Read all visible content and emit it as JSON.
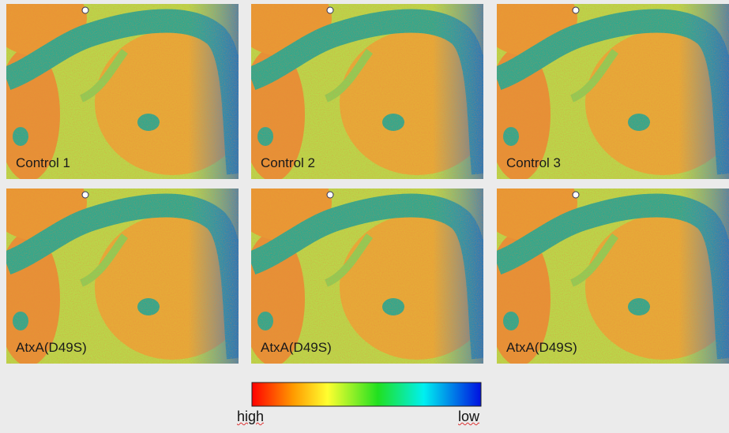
{
  "panels": [
    {
      "label": "Control 1"
    },
    {
      "label": "Control 2"
    },
    {
      "label": "Control 3"
    },
    {
      "label": "AtxA(D49S)"
    },
    {
      "label": "AtxA(D49S)"
    },
    {
      "label": "AtxA(D49S)"
    }
  ],
  "colorbar": {
    "high": "high",
    "low": "low"
  }
}
